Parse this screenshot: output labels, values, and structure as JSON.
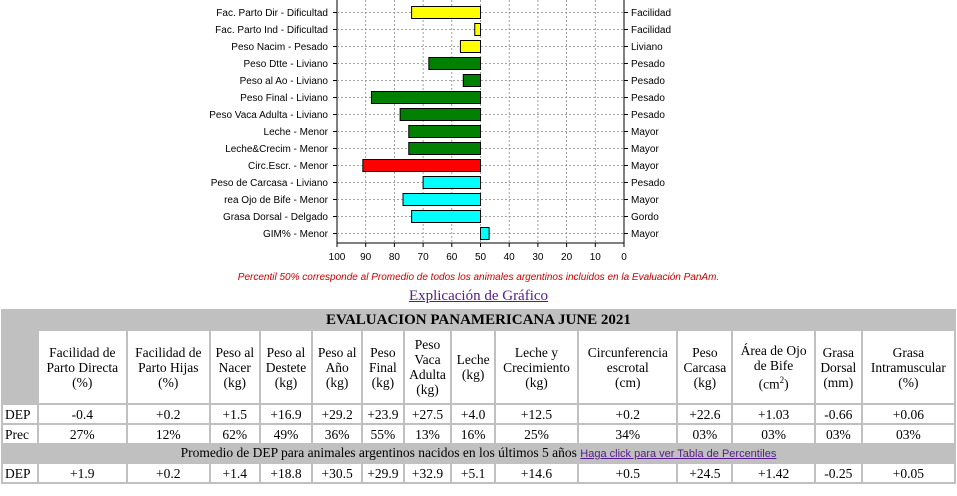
{
  "chart_data": {
    "type": "bar",
    "orientation": "horizontal",
    "x_ticks": [
      "100",
      "90",
      "80",
      "70",
      "60",
      "50",
      "40",
      "30",
      "20",
      "10",
      "0"
    ],
    "xlim": [
      100,
      0
    ],
    "baseline": 50,
    "grid": true,
    "rows": [
      {
        "left": "Fac. Parto Dir - Dificultad",
        "right": "Facilidad",
        "value": 74,
        "color": "#ffff00"
      },
      {
        "left": "Fac. Parto Ind - Dificultad",
        "right": "Facilidad",
        "value": 52,
        "color": "#ffff00"
      },
      {
        "left": "Peso Nacim - Pesado",
        "right": "Liviano",
        "value": 57,
        "color": "#ffff00"
      },
      {
        "left": "Peso Dtte - Liviano",
        "right": "Pesado",
        "value": 68,
        "color": "#008000"
      },
      {
        "left": "Peso al Ao - Liviano",
        "right": "Pesado",
        "value": 56,
        "color": "#008000"
      },
      {
        "left": "Peso Final - Liviano",
        "right": "Pesado",
        "value": 88,
        "color": "#008000"
      },
      {
        "left": "Peso Vaca Adulta - Liviano",
        "right": "Pesado",
        "value": 78,
        "color": "#008000"
      },
      {
        "left": "Leche - Menor",
        "right": "Mayor",
        "value": 75,
        "color": "#008000"
      },
      {
        "left": "Leche&Crecim - Menor",
        "right": "Mayor",
        "value": 75,
        "color": "#008000"
      },
      {
        "left": "Circ.Escr. - Menor",
        "right": "Mayor",
        "value": 91,
        "color": "#ff0000"
      },
      {
        "left": "Peso de Carcasa - Liviano",
        "right": "Pesado",
        "value": 70,
        "color": "#00ffff"
      },
      {
        "left": "rea Ojo de Bife - Menor",
        "right": "Mayor",
        "value": 77,
        "color": "#00ffff"
      },
      {
        "left": "Grasa Dorsal - Delgado",
        "right": "Gordo",
        "value": 74,
        "color": "#00ffff"
      },
      {
        "left": "GIM% - Menor",
        "right": "Mayor",
        "value": 47,
        "color": "#00ffff"
      }
    ]
  },
  "note": "Percentil 50% corresponde al Promedio de todos los animales argentinos incluidos en la Evaluación PanAm.",
  "explain_link": "Explicación de Gráfico",
  "table": {
    "title": "EVALUACION PANAMERICANA JUNE 2021",
    "headers": [
      [
        "Facilidad de",
        "Parto Directa",
        "(%)"
      ],
      [
        "Facilidad de",
        "Parto Hijas",
        "(%)"
      ],
      [
        "Peso al",
        "Nacer",
        "(kg)"
      ],
      [
        "Peso al",
        "Destete",
        "(kg)"
      ],
      [
        "Peso al",
        "Año",
        "(kg)"
      ],
      [
        "Peso",
        "Final",
        "(kg)"
      ],
      [
        "Peso",
        "Vaca",
        "Adulta",
        "(kg)"
      ],
      [
        "Leche",
        "(kg)"
      ],
      [
        "Leche y",
        "Crecimiento",
        "(kg)"
      ],
      [
        "Circunferencia",
        "escrotal",
        "(cm)"
      ],
      [
        "Peso",
        "Carcasa",
        "(kg)"
      ],
      [
        "Área de Ojo",
        "de Bife",
        "(cm²)"
      ],
      [
        "Grasa",
        "Dorsal",
        "(mm)"
      ],
      [
        "Grasa",
        "Intramuscular",
        "(%)"
      ]
    ],
    "dep_label": "DEP",
    "dep": [
      "-0.4",
      "+0.2",
      "+1.5",
      "+16.9",
      "+29.2",
      "+23.9",
      "+27.5",
      "+4.0",
      "+12.5",
      "+0.2",
      "+22.6",
      "+1.03",
      "-0.66",
      "+0.06"
    ],
    "prec_label": "Prec",
    "prec": [
      "27%",
      "12%",
      "62%",
      "49%",
      "36%",
      "55%",
      "13%",
      "16%",
      "25%",
      "34%",
      "03%",
      "03%",
      "03%",
      "03%"
    ],
    "avg_text": "Promedio de DEP para animales argentinos nacidos en los últimos 5 años",
    "avg_link": "Haga click para ver Tabla de Percentiles",
    "avg_label": "DEP",
    "avg": [
      "+1.9",
      "+0.2",
      "+1.4",
      "+18.8",
      "+30.5",
      "+29.9",
      "+32.9",
      "+5.1",
      "+14.6",
      "+0.5",
      "+24.5",
      "+1.42",
      "-0.25",
      "+0.05"
    ]
  }
}
